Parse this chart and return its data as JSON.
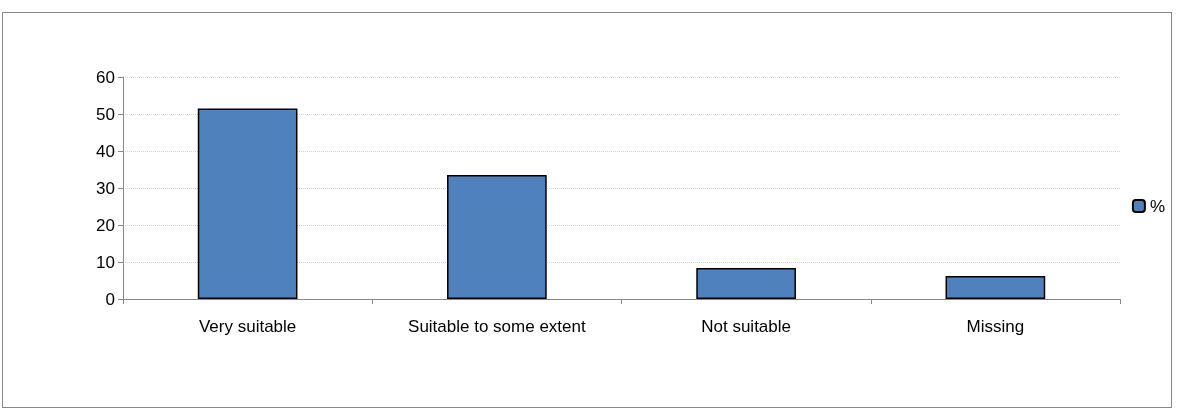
{
  "chart_data": {
    "type": "bar",
    "categories": [
      "Very suitable",
      "Suitable to some extent",
      "Not suitable",
      "Missing"
    ],
    "series": [
      {
        "name": "%",
        "color": "#4f81bd",
        "values": [
          51.5,
          33.5,
          8.4,
          6.2
        ]
      }
    ],
    "ylim": [
      0,
      60
    ],
    "yticks": [
      0,
      10,
      20,
      30,
      40,
      50,
      60
    ],
    "grid": "y",
    "legend": "right"
  }
}
